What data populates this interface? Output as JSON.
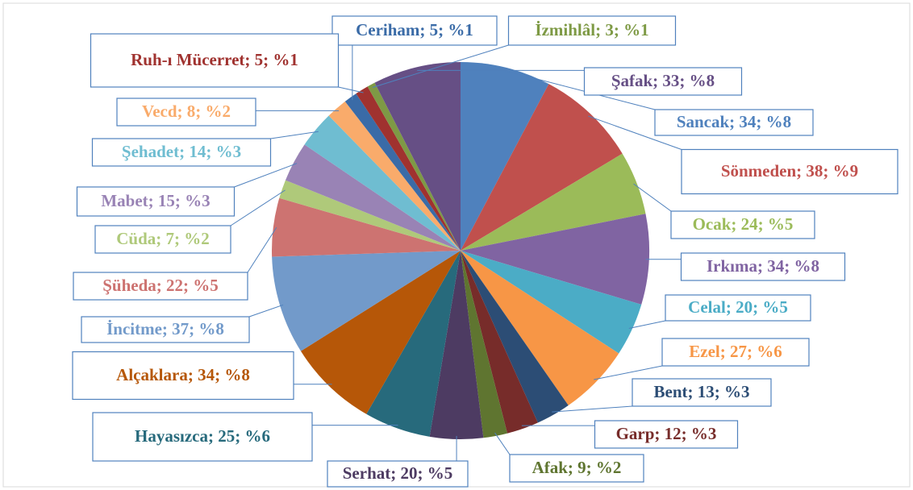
{
  "chart_data": {
    "type": "pie",
    "categories": [
      "Sancak",
      "Sönmeden",
      "Ocak",
      "Irkıma",
      "Celal",
      "Ezel",
      "Bent",
      "Garp",
      "Afak",
      "Serhat",
      "Hayasızca",
      "Alçaklara",
      "İncitme",
      "Şüheda",
      "Cüda",
      "Mabet",
      "Şehadet",
      "Vecd",
      "Ceriham",
      "Ruh-ı Mücerret",
      "İzmihlâl",
      "Şafak"
    ],
    "values": [
      34,
      38,
      24,
      34,
      20,
      27,
      13,
      12,
      9,
      20,
      25,
      34,
      37,
      22,
      7,
      15,
      14,
      8,
      5,
      5,
      3,
      33
    ],
    "value_labels": [
      "Sancak; 34; %8",
      "Sönmeden; 38; %9",
      "Ocak; 24; %5",
      "Irkıma; 34; %8",
      "Celal; 20; %5",
      "Ezel; 27; %6",
      "Bent; 13; %3",
      "Garp; 12; %3",
      "Afak; 9; %2",
      "Serhat; 20; %5",
      "Hayasızca; 25; %6",
      "Alçaklara; 34; %8",
      "İncitme; 37; %8",
      "Şüheda; 22; %5",
      "Cüda; 7; %2",
      "Mabet; 15; %3",
      "Şehadet; 14; %3",
      "Vecd; 8; %2",
      "Ceriham; 5; %1",
      "Ruh-ı Mücerret; 5; %1",
      "İzmihlâl; 3; %1",
      "Şafak; 33; %8"
    ],
    "colors": [
      "#4f81bd",
      "#c0504d",
      "#9bbb59",
      "#8064a2",
      "#4bacc6",
      "#f79646",
      "#2c4d75",
      "#772c2a",
      "#5f7530",
      "#4d3b62",
      "#276a7c",
      "#b65708",
      "#729aca",
      "#cd7371",
      "#afc97a",
      "#9983b5",
      "#6fbdd1",
      "#f9ab6b",
      "#3a6ba7",
      "#a0322f",
      "#7e9a45",
      "#664f85"
    ]
  }
}
